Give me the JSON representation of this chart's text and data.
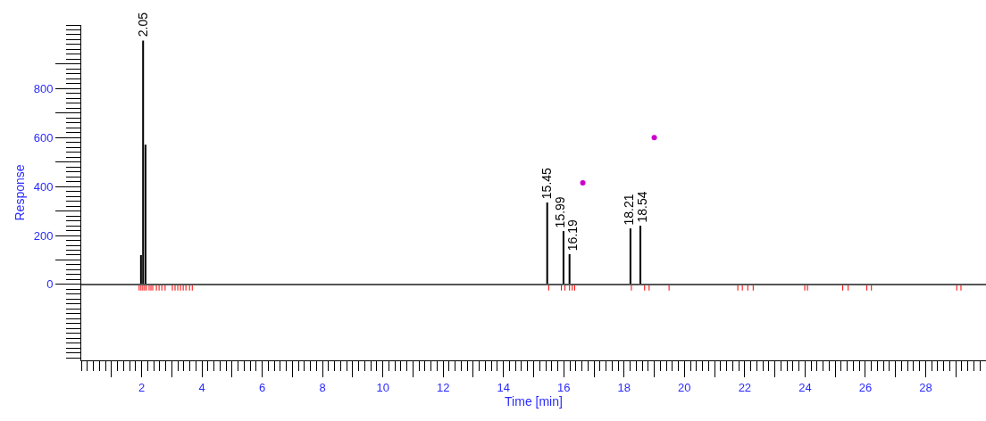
{
  "chart_data": {
    "type": "bar",
    "xlabel": "Time [min]",
    "ylabel": "Response",
    "xlim": [
      0,
      30
    ],
    "ylim": [
      -310,
      1060
    ],
    "xticks": [
      {
        "value": 1,
        "label": null
      },
      2,
      {
        "value": 3,
        "label": null
      },
      4,
      {
        "value": 5,
        "label": null
      },
      6,
      {
        "value": 7,
        "label": null
      },
      8,
      {
        "value": 9,
        "label": null
      },
      10,
      {
        "value": 11,
        "label": null
      },
      12,
      {
        "value": 13,
        "label": null
      },
      14,
      {
        "value": 15,
        "label": null
      },
      16,
      {
        "value": 17,
        "label": null
      },
      18,
      {
        "value": 19,
        "label": null
      },
      20,
      {
        "value": 21,
        "label": null
      },
      22,
      {
        "value": 23,
        "label": null
      },
      24,
      {
        "value": 25,
        "label": null
      },
      26,
      {
        "value": 27,
        "label": null
      },
      28,
      {
        "value": 29,
        "label": null
      }
    ],
    "yticks": [
      0,
      {
        "value": 100,
        "label": null
      },
      200,
      {
        "value": 300,
        "label": null
      },
      400,
      {
        "value": 500,
        "label": null
      },
      600,
      {
        "value": 700,
        "label": null
      },
      800,
      {
        "value": 900,
        "label": null
      }
    ],
    "grid": false,
    "annotations": [
      {
        "text": "2.05",
        "x": 2.05,
        "y": 996
      },
      {
        "text": "15.45",
        "x": 15.45,
        "y": 335
      },
      {
        "text": "15.99",
        "x": 15.99,
        "y": 218
      },
      {
        "text": "16.19",
        "x": 16.19,
        "y": 124
      },
      {
        "text": "18.21",
        "x": 18.21,
        "y": 229
      },
      {
        "text": "18.54",
        "x": 18.54,
        "y": 240
      }
    ],
    "series": [
      {
        "type": "line",
        "color": "#555555",
        "x": [
          0,
          30
        ],
        "values": [
          0,
          0
        ]
      },
      {
        "color": "#000000",
        "x": [
          1.98,
          2.05,
          2.13,
          15.45,
          15.99,
          16.19,
          18.21,
          18.54
        ],
        "values": [
          120,
          996,
          571,
          335,
          218,
          124,
          229,
          240
        ]
      },
      {
        "color": "#ff0000",
        "x": [
          1.92,
          1.98,
          2.04,
          2.1,
          2.16,
          2.25,
          2.31,
          2.37,
          2.49,
          2.58,
          2.67,
          2.78,
          3.02,
          3.11,
          3.2,
          3.29,
          3.38,
          3.47,
          3.59,
          3.68,
          15.5,
          15.92,
          16.04,
          16.19,
          16.28,
          16.36,
          18.24,
          18.68,
          18.83,
          19.49,
          21.77,
          21.92,
          22.1,
          22.28,
          23.99,
          24.08,
          25.25,
          25.43,
          26.05,
          26.2,
          29.03,
          29.17
        ],
        "values": [
          -25,
          -25,
          -25,
          -25,
          -25,
          -25,
          -25,
          -25,
          -25,
          -25,
          -25,
          -25,
          -25,
          -25,
          -25,
          -25,
          -25,
          -25,
          -25,
          -25,
          -25,
          -25,
          -25,
          -25,
          -25,
          -25,
          -25,
          -25,
          -25,
          -25,
          -25,
          -25,
          -25,
          -25,
          -25,
          -25,
          -25,
          -25,
          -25,
          -25,
          -25,
          -25
        ]
      },
      {
        "type": "scatter",
        "color": "#cc00cc",
        "x": [
          16.63,
          19.0
        ],
        "values": [
          415,
          600
        ]
      }
    ]
  }
}
